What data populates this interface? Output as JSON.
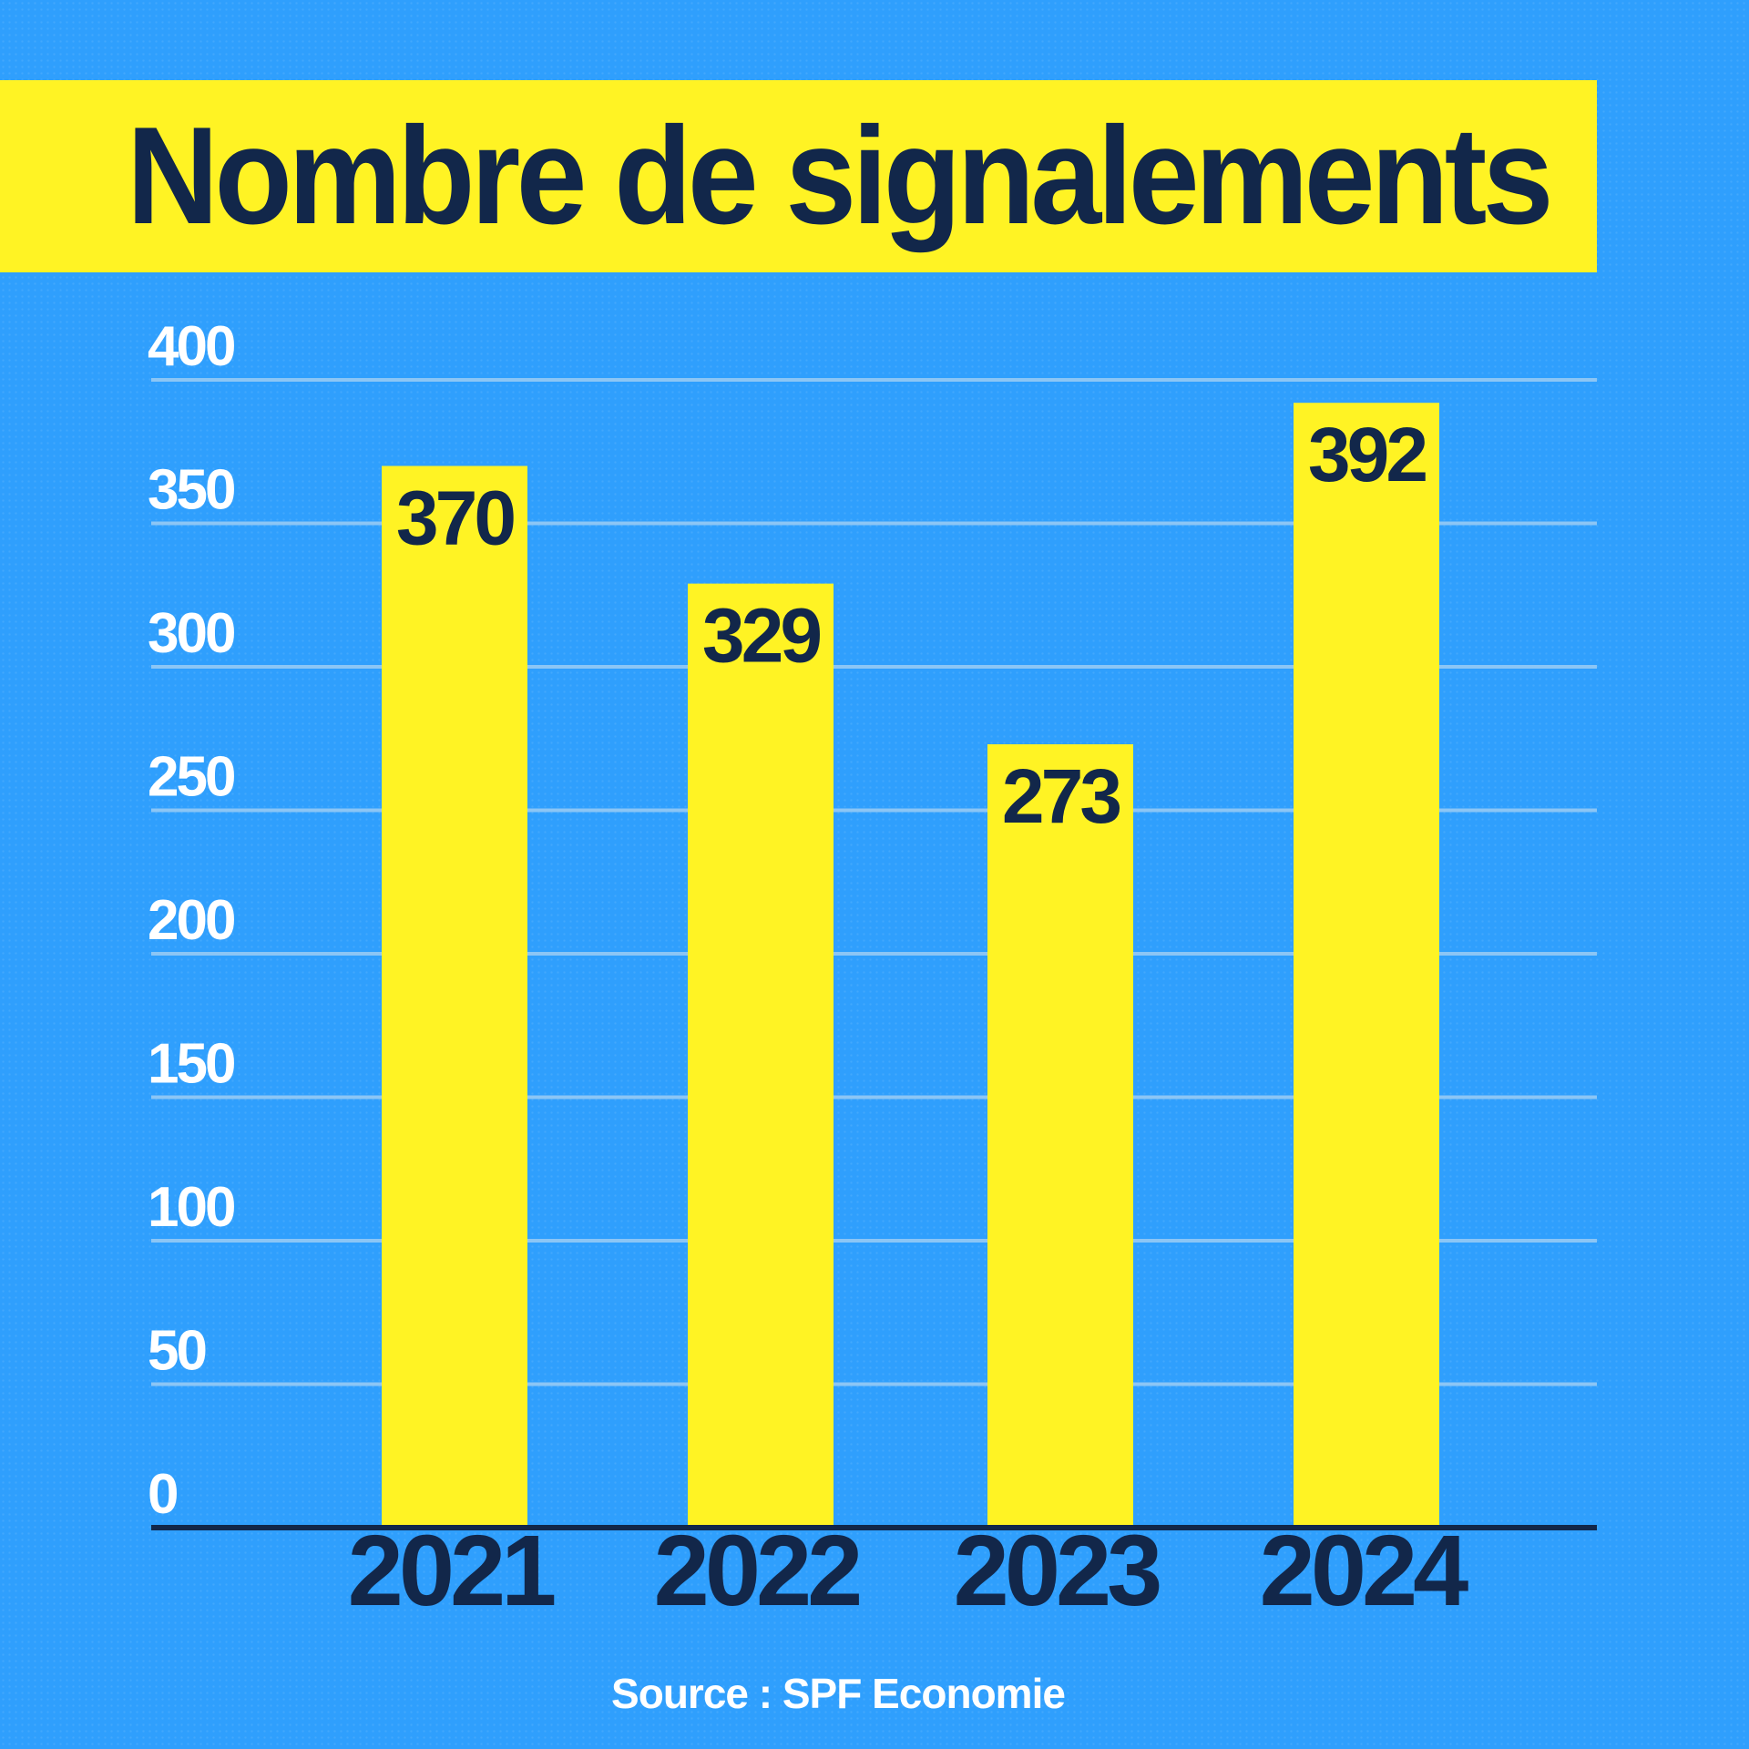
{
  "title": "Nombre de signalements",
  "source": "Source : SPF Economie",
  "colors": {
    "background": "#2f9ffd",
    "bar": "#fff324",
    "title_band": "#fff324",
    "dark_text": "#12274a",
    "tick_text": "#ffffff",
    "gridline": "#8cc6f5",
    "axis_line": "#12274a"
  },
  "chart_data": {
    "type": "bar",
    "title": "Nombre de signalements",
    "categories": [
      "2021",
      "2022",
      "2023",
      "2024"
    ],
    "values": [
      370,
      329,
      273,
      392
    ],
    "data_labels": [
      "370",
      "329",
      "273",
      "392"
    ],
    "y_ticks": [
      0,
      50,
      100,
      150,
      200,
      250,
      300,
      350,
      400
    ],
    "ylim": [
      0,
      400
    ],
    "xlabel": "",
    "ylabel": "",
    "grid": true,
    "legend": "none"
  }
}
